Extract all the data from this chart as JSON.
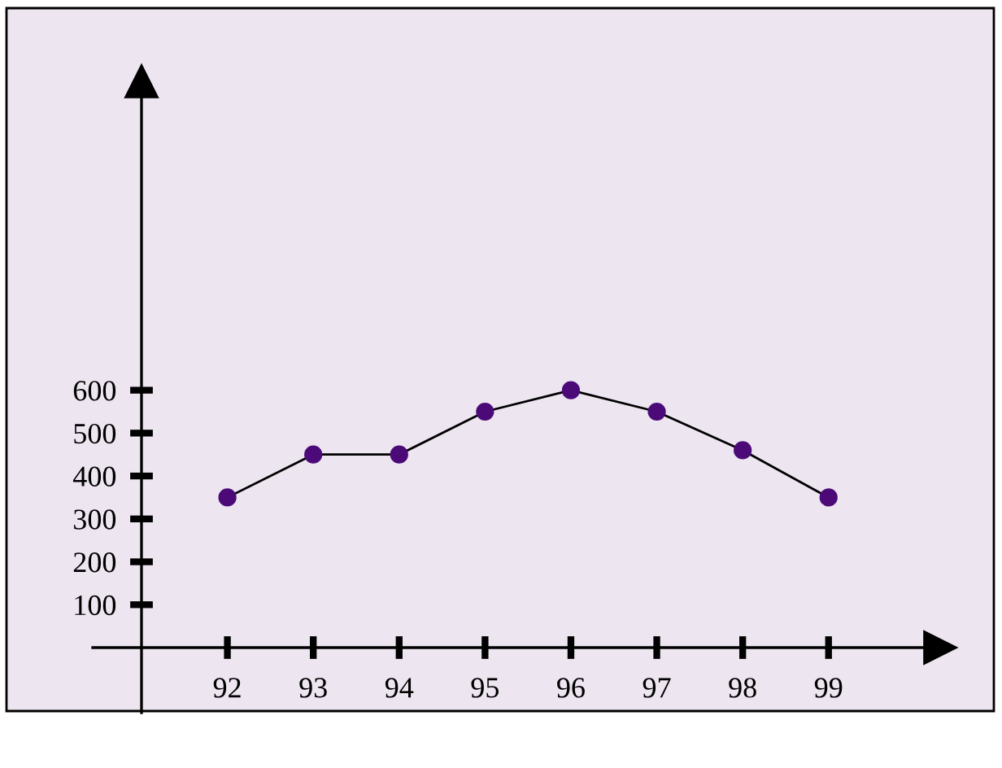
{
  "chart_data": {
    "type": "line",
    "x": [
      92,
      93,
      94,
      95,
      96,
      97,
      98,
      99
    ],
    "series": [
      {
        "color": "#4b0a78",
        "values": [
          350,
          450,
          450,
          550,
          600,
          550,
          460,
          350
        ]
      }
    ],
    "marker": "circle",
    "line_style": "solid",
    "xlim": [
      91,
      100.3
    ],
    "xticks": [
      92,
      93,
      94,
      95,
      96,
      97,
      98,
      99
    ],
    "ylim": [
      0,
      1320
    ],
    "yticks": [
      100,
      200,
      300,
      400,
      500,
      600
    ],
    "grid": false,
    "legend": false
  }
}
